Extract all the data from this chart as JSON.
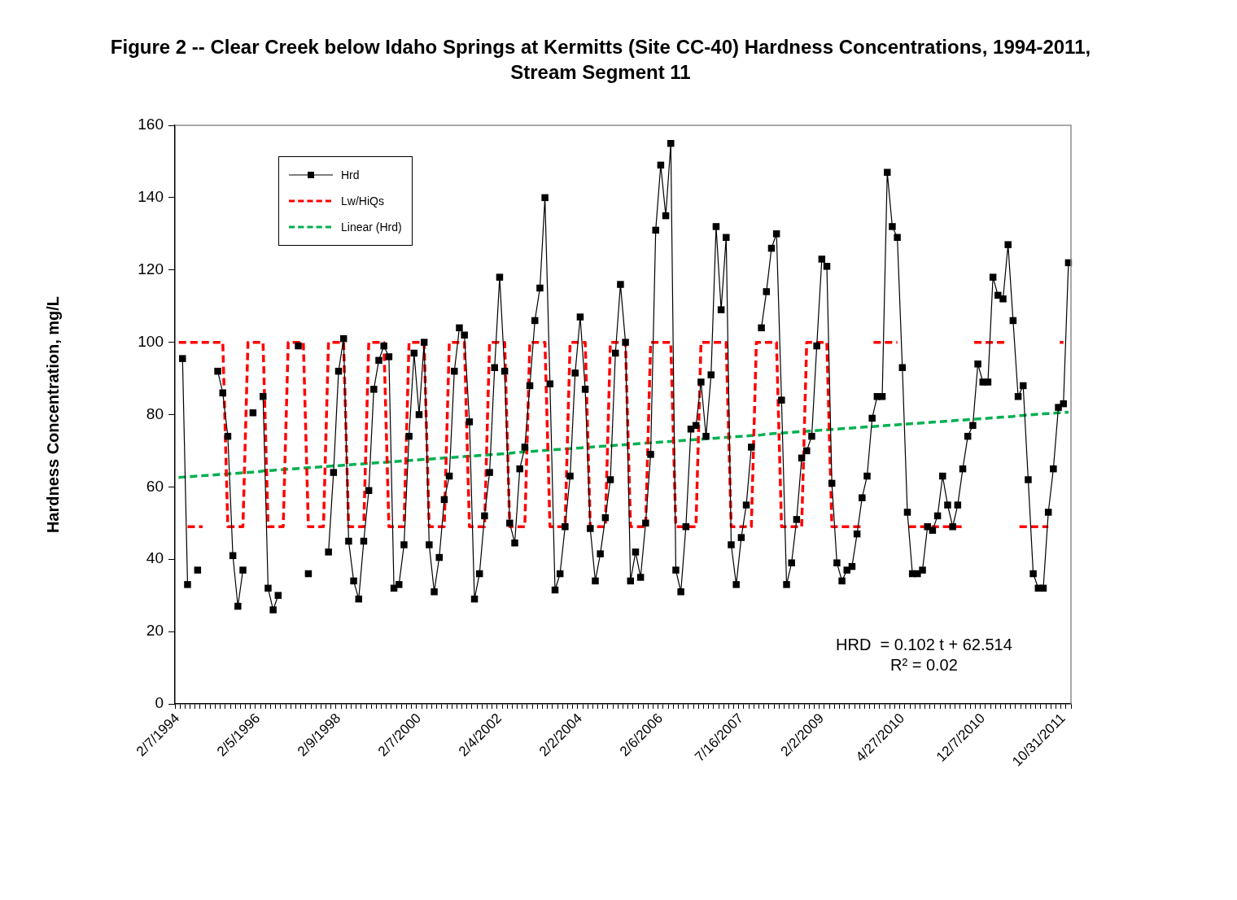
{
  "chart_data": {
    "type": "line",
    "title": "Figure 2 -- Clear Creek below Idaho Springs at Kermitts (Site CC-40) Hardness Concentrations, 1994-2011, Stream Segment 11",
    "ylabel": "Hardness Concentration, mg/L",
    "categories": [
      "2/7/1994",
      null,
      null,
      null,
      null,
      null,
      null,
      null,
      null,
      null,
      null,
      null,
      null,
      null,
      null,
      null,
      "2/5/1996",
      null,
      null,
      null,
      null,
      null,
      null,
      null,
      null,
      null,
      null,
      null,
      null,
      null,
      null,
      null,
      "2/9/1998",
      null,
      null,
      null,
      null,
      null,
      null,
      null,
      null,
      null,
      null,
      null,
      null,
      null,
      null,
      null,
      "2/7/2000",
      null,
      null,
      null,
      null,
      null,
      null,
      null,
      null,
      null,
      null,
      null,
      null,
      null,
      null,
      null,
      "2/4/2002",
      null,
      null,
      null,
      null,
      null,
      null,
      null,
      null,
      null,
      null,
      null,
      null,
      null,
      null,
      null,
      "2/2/2004",
      null,
      null,
      null,
      null,
      null,
      null,
      null,
      null,
      null,
      null,
      null,
      null,
      null,
      null,
      null,
      "2/6/2006",
      null,
      null,
      null,
      null,
      null,
      null,
      null,
      null,
      null,
      null,
      null,
      null,
      null,
      null,
      null,
      "7/16/2007",
      null,
      null,
      null,
      null,
      null,
      null,
      null,
      null,
      null,
      null,
      null,
      null,
      null,
      null,
      null,
      "2/2/2009",
      null,
      null,
      null,
      null,
      null,
      null,
      null,
      null,
      null,
      null,
      null,
      null,
      null,
      null,
      null,
      "4/27/2010",
      null,
      null,
      null,
      null,
      null,
      null,
      null,
      null,
      null,
      null,
      null,
      null,
      null,
      null,
      null,
      "12/7/2010",
      null,
      null,
      null,
      null,
      null,
      null,
      null,
      null,
      null,
      null,
      null,
      null,
      null,
      null,
      null,
      "10/31/2011",
      null
    ],
    "series": [
      {
        "name": "Hrd",
        "color": "#000000",
        "marker": "square",
        "line_style": "solid",
        "values": [
          null,
          95.5,
          33,
          null,
          37,
          null,
          null,
          null,
          92,
          86,
          74,
          41,
          27,
          37,
          null,
          80.5,
          null,
          85,
          32,
          26,
          30,
          null,
          null,
          null,
          99,
          null,
          36,
          null,
          null,
          null,
          42,
          64,
          92,
          101,
          45,
          34,
          29,
          45,
          59,
          87,
          95,
          99,
          96,
          32,
          33,
          44,
          74,
          97,
          80,
          100,
          44,
          31,
          40.5,
          56.5,
          63,
          92,
          104,
          102,
          78,
          29,
          36,
          52,
          64,
          93,
          118,
          92,
          50,
          44.5,
          65,
          71,
          88,
          106,
          115,
          140,
          88.5,
          31.5,
          36,
          49,
          63,
          91.5,
          107,
          87,
          48.5,
          34,
          41.5,
          51.5,
          62,
          97,
          116,
          100,
          34,
          42,
          35,
          50,
          69,
          131,
          149,
          135,
          155,
          37,
          31,
          49,
          76,
          77,
          89,
          74,
          91,
          132,
          109,
          129,
          44,
          33,
          46,
          55,
          71,
          null,
          104,
          114,
          126,
          130,
          84,
          33,
          39,
          51,
          68,
          70,
          74,
          99,
          123,
          121,
          61,
          39,
          34,
          37,
          38,
          47,
          57,
          63,
          79,
          85,
          85,
          147,
          132,
          129,
          93,
          53,
          36,
          36,
          37,
          49,
          48,
          52,
          63,
          55,
          49,
          55,
          65,
          74,
          77,
          94,
          89,
          89,
          118,
          113,
          112,
          127,
          106,
          85,
          88,
          62,
          36,
          32,
          32,
          53,
          65,
          82,
          83,
          122
        ]
      },
      {
        "name": "Lw/HiQs",
        "color": "#ff0000",
        "marker": "none",
        "line_style": "dashed",
        "values": [
          100,
          100,
          100,
          100,
          100,
          100,
          100,
          100,
          100,
          100,
          49,
          49,
          49,
          49,
          100,
          100,
          100,
          100,
          49,
          49,
          49,
          49,
          100,
          100,
          100,
          100,
          49,
          49,
          49,
          49,
          100,
          100,
          100,
          100,
          49,
          49,
          49,
          49,
          100,
          100,
          100,
          100,
          49,
          49,
          49,
          49,
          100,
          100,
          100,
          100,
          49,
          49,
          49,
          49,
          100,
          100,
          100,
          100,
          49,
          49,
          49,
          49,
          100,
          100,
          100,
          100,
          49,
          49,
          49,
          49,
          100,
          100,
          100,
          100,
          49,
          49,
          49,
          49,
          100,
          100,
          100,
          100,
          49,
          49,
          49,
          49,
          100,
          100,
          100,
          100,
          49,
          49,
          49,
          49,
          100,
          100,
          100,
          100,
          100,
          49,
          49,
          49,
          49,
          49,
          100,
          100,
          100,
          100,
          100,
          100,
          49,
          49,
          49,
          49,
          49,
          100,
          100,
          100,
          100,
          100,
          49,
          49,
          49,
          49,
          49,
          100,
          100,
          100,
          100,
          100,
          49,
          49,
          49,
          49,
          49,
          49,
          49,
          null,
          100,
          100,
          100,
          100,
          100,
          100,
          null,
          49,
          49,
          49,
          49,
          49,
          49,
          49,
          49,
          49,
          49,
          49,
          49,
          null,
          100,
          100,
          100,
          100,
          100,
          100,
          100,
          100,
          null,
          49,
          49,
          49,
          49,
          49,
          49,
          49,
          null,
          100,
          100,
          null
        ]
      },
      {
        "color": "#ff0000",
        "marker": "none",
        "line_style": "dashed",
        "values": [
          null,
          null,
          49,
          49,
          49,
          49,
          null,
          null,
          null,
          null,
          null,
          null,
          null,
          null,
          null,
          null,
          null,
          null,
          null,
          null,
          null,
          null,
          null,
          null,
          null,
          null,
          null,
          null,
          null,
          null,
          null,
          null,
          null,
          null,
          null,
          null,
          null,
          null,
          null,
          null,
          null,
          null,
          null,
          null,
          null,
          null,
          null,
          null,
          null,
          null,
          null,
          null,
          null,
          null,
          null,
          null,
          null,
          null,
          null,
          null,
          null,
          null,
          null,
          null,
          null,
          null,
          null,
          null,
          null,
          null,
          null,
          null,
          null,
          null,
          null,
          null,
          null,
          null,
          null,
          null,
          null,
          null,
          null,
          null,
          null,
          null,
          null,
          null,
          null,
          null,
          null,
          null,
          null,
          null,
          null,
          null,
          null,
          null,
          null,
          null,
          null,
          null,
          null,
          null,
          null,
          null,
          null,
          null,
          null,
          null,
          null,
          null,
          null,
          null,
          null,
          null,
          null,
          null,
          null,
          null,
          null,
          null,
          null,
          null,
          null,
          null,
          null,
          null,
          null,
          null,
          null,
          null,
          null,
          null,
          null,
          null,
          null,
          null,
          null,
          null,
          null,
          null,
          null,
          null,
          null,
          null,
          null,
          null,
          null,
          null,
          null,
          null,
          null,
          null,
          null,
          null,
          null,
          null,
          null,
          null,
          null,
          null,
          null,
          null,
          null,
          null,
          null,
          null,
          null,
          null,
          null,
          null,
          null,
          null,
          null,
          null,
          null,
          null
        ]
      },
      {
        "name": "Linear (Hrd)",
        "color": "#00b050",
        "marker": "none",
        "line_style": "dashed",
        "values": [
          62.6,
          62.7,
          62.8,
          62.9,
          63.0,
          63.1,
          63.2,
          63.3,
          63.4,
          63.5,
          63.6,
          63.7,
          63.8,
          63.9,
          64.0,
          64.1,
          64.2,
          64.4,
          64.5,
          64.6,
          64.7,
          64.8,
          64.9,
          65.0,
          65.1,
          65.2,
          65.3,
          65.4,
          65.5,
          65.6,
          65.7,
          65.8,
          65.9,
          66.0,
          66.1,
          66.2,
          66.3,
          66.4,
          66.5,
          66.6,
          66.7,
          66.8,
          66.9,
          67.0,
          67.1,
          67.2,
          67.3,
          67.4,
          67.5,
          67.6,
          67.7,
          67.8,
          67.9,
          68.0,
          68.1,
          68.2,
          68.3,
          68.4,
          68.5,
          68.6,
          68.7,
          68.8,
          68.9,
          69.0,
          69.1,
          69.2,
          69.3,
          69.5,
          69.6,
          69.7,
          69.8,
          69.9,
          70.0,
          70.1,
          70.2,
          70.3,
          70.4,
          70.5,
          70.6,
          70.7,
          70.8,
          70.9,
          71.0,
          71.1,
          71.2,
          71.3,
          71.4,
          71.5,
          71.6,
          71.7,
          71.8,
          71.9,
          72.0,
          72.1,
          72.2,
          72.3,
          72.4,
          72.5,
          72.6,
          72.7,
          72.8,
          72.9,
          73.0,
          73.1,
          73.2,
          73.3,
          73.4,
          73.5,
          73.6,
          73.7,
          73.8,
          73.9,
          74.0,
          74.1,
          74.2,
          74.3,
          74.4,
          74.6,
          74.7,
          74.8,
          74.9,
          75.0,
          75.1,
          75.2,
          75.3,
          75.4,
          75.5,
          75.6,
          75.7,
          75.8,
          75.9,
          76.0,
          76.1,
          76.2,
          76.3,
          76.4,
          76.5,
          76.6,
          76.7,
          76.8,
          76.9,
          77.0,
          77.1,
          77.2,
          77.3,
          77.4,
          77.5,
          77.6,
          77.7,
          77.8,
          77.9,
          78.0,
          78.1,
          78.2,
          78.3,
          78.4,
          78.5,
          78.6,
          78.7,
          78.8,
          78.9,
          79.0,
          79.1,
          79.2,
          79.3,
          79.4,
          79.5,
          79.7,
          79.8,
          79.9,
          80.0,
          80.1,
          80.2,
          80.3,
          80.4,
          80.5,
          80.6,
          80.7
        ]
      }
    ],
    "ylim": [
      0,
      160
    ],
    "yticks": [
      0,
      20,
      40,
      60,
      80,
      100,
      120,
      140,
      160
    ],
    "legend": "top left",
    "annotations": [
      "HRD  = 0.102 t + 62.514",
      "R² = 0.02"
    ]
  }
}
